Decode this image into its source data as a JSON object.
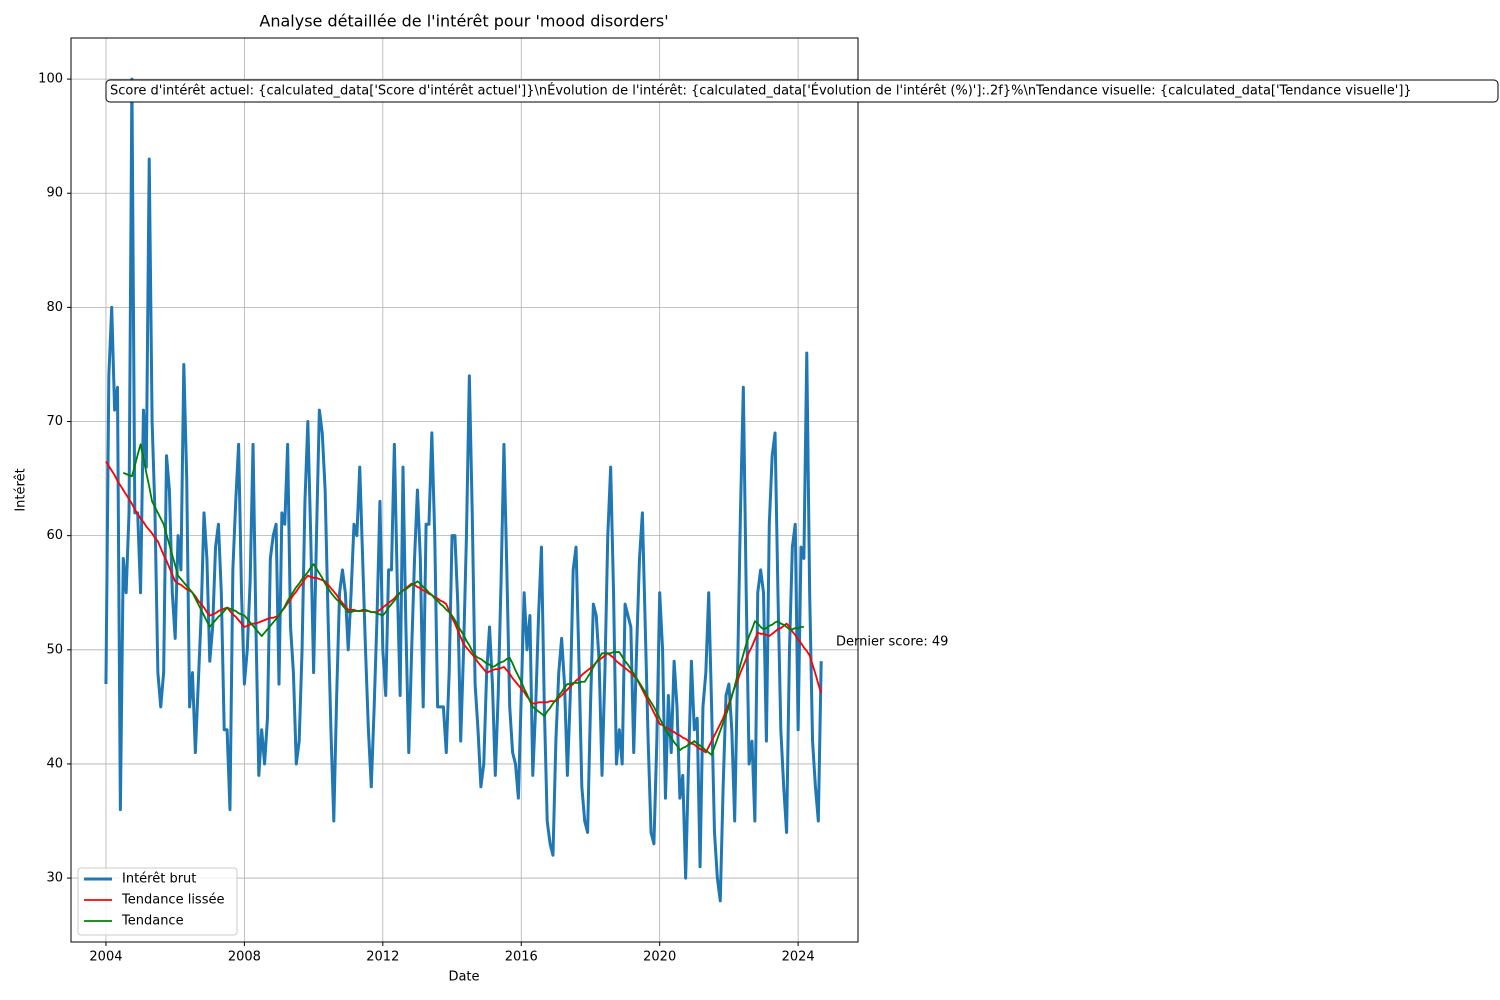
{
  "chart_data": {
    "type": "line",
    "title": "Analyse détaillée de l'intérêt pour 'mood disorders'",
    "xlabel": "Date",
    "ylabel": "Intérêt",
    "annotations": [
      "Score d'intérêt actuel: {calculated_data['Score d'intérêt actuel']}\\nÉvolution de l'intérêt: {calculated_data['Évolution de l'intérêt (%)']:.2f}%\\nTendance visuelle: {calculated_data['Tendance visuelle']}",
      "Dernier score: 49"
    ],
    "xlim": [
      2002.99,
      2025.73
    ],
    "xticks": [
      2004,
      2008,
      2012,
      2016,
      2020,
      2024
    ],
    "ylim": [
      24.4,
      103.6
    ],
    "yticks": [
      30,
      40,
      50,
      60,
      70,
      80,
      90,
      100
    ],
    "grid": true,
    "legend": "lower left",
    "x": [
      "2004-01",
      "2004-02",
      "2004-03",
      "2004-04",
      "2004-05",
      "2004-06",
      "2004-07",
      "2004-08",
      "2004-09",
      "2004-10",
      "2004-11",
      "2004-12",
      "2005-01",
      "2005-02",
      "2005-03",
      "2005-04",
      "2005-05",
      "2005-06",
      "2005-07",
      "2005-08",
      "2005-09",
      "2005-10",
      "2005-11",
      "2005-12",
      "2006-01",
      "2006-02",
      "2006-03",
      "2006-04",
      "2006-05",
      "2006-06",
      "2006-07",
      "2006-08",
      "2006-09",
      "2006-10",
      "2006-11",
      "2006-12",
      "2007-01",
      "2007-02",
      "2007-03",
      "2007-04",
      "2007-05",
      "2007-06",
      "2007-07",
      "2007-08",
      "2007-09",
      "2007-10",
      "2007-11",
      "2007-12",
      "2008-01",
      "2008-02",
      "2008-03",
      "2008-04",
      "2008-05",
      "2008-06",
      "2008-07",
      "2008-08",
      "2008-09",
      "2008-10",
      "2008-11",
      "2008-12",
      "2009-01",
      "2009-02",
      "2009-03",
      "2009-04",
      "2009-05",
      "2009-06",
      "2009-07",
      "2009-08",
      "2009-09",
      "2009-10",
      "2009-11",
      "2009-12",
      "2010-01",
      "2010-02",
      "2010-03",
      "2010-04",
      "2010-05",
      "2010-06",
      "2010-07",
      "2010-08",
      "2010-09",
      "2010-10",
      "2010-11",
      "2010-12",
      "2011-01",
      "2011-02",
      "2011-03",
      "2011-04",
      "2011-05",
      "2011-06",
      "2011-07",
      "2011-08",
      "2011-09",
      "2011-10",
      "2011-11",
      "2011-12",
      "2012-01",
      "2012-02",
      "2012-03",
      "2012-04",
      "2012-05",
      "2012-06",
      "2012-07",
      "2012-08",
      "2012-09",
      "2012-10",
      "2012-11",
      "2012-12",
      "2013-01",
      "2013-02",
      "2013-03",
      "2013-04",
      "2013-05",
      "2013-06",
      "2013-07",
      "2013-08",
      "2013-09",
      "2013-10",
      "2013-11",
      "2013-12",
      "2014-01",
      "2014-02",
      "2014-03",
      "2014-04",
      "2014-05",
      "2014-06",
      "2014-07",
      "2014-08",
      "2014-09",
      "2014-10",
      "2014-11",
      "2014-12",
      "2015-01",
      "2015-02",
      "2015-03",
      "2015-04",
      "2015-05",
      "2015-06",
      "2015-07",
      "2015-08",
      "2015-09",
      "2015-10",
      "2015-11",
      "2015-12",
      "2016-01",
      "2016-02",
      "2016-03",
      "2016-04",
      "2016-05",
      "2016-06",
      "2016-07",
      "2016-08",
      "2016-09",
      "2016-10",
      "2016-11",
      "2016-12",
      "2017-01",
      "2017-02",
      "2017-03",
      "2017-04",
      "2017-05",
      "2017-06",
      "2017-07",
      "2017-08",
      "2017-09",
      "2017-10",
      "2017-11",
      "2017-12",
      "2018-01",
      "2018-02",
      "2018-03",
      "2018-04",
      "2018-05",
      "2018-06",
      "2018-07",
      "2018-08",
      "2018-09",
      "2018-10",
      "2018-11",
      "2018-12",
      "2019-01",
      "2019-02",
      "2019-03",
      "2019-04",
      "2019-05",
      "2019-06",
      "2019-07",
      "2019-08",
      "2019-09",
      "2019-10",
      "2019-11",
      "2019-12",
      "2020-01",
      "2020-02",
      "2020-03",
      "2020-04",
      "2020-05",
      "2020-06",
      "2020-07",
      "2020-08",
      "2020-09",
      "2020-10",
      "2020-11",
      "2020-12",
      "2021-01",
      "2021-02",
      "2021-03",
      "2021-04",
      "2021-05",
      "2021-06",
      "2021-07",
      "2021-08",
      "2021-09",
      "2021-10",
      "2021-11",
      "2021-12",
      "2022-01",
      "2022-02",
      "2022-03",
      "2022-04",
      "2022-05",
      "2022-06",
      "2022-07",
      "2022-08",
      "2022-09",
      "2022-10",
      "2022-11",
      "2022-12",
      "2023-01",
      "2023-02",
      "2023-03",
      "2023-04",
      "2023-05",
      "2023-06",
      "2023-07",
      "2023-08",
      "2023-09",
      "2023-10",
      "2023-11",
      "2023-12",
      "2024-01",
      "2024-02",
      "2024-03",
      "2024-04",
      "2024-05",
      "2024-06",
      "2024-07",
      "2024-08",
      "2024-09"
    ],
    "series": [
      {
        "name": "Intérêt brut",
        "color": "#1f77b4",
        "width": 3,
        "values": [
          47,
          74,
          80,
          71,
          73,
          36,
          58,
          55,
          62,
          100,
          62,
          62,
          55,
          71,
          66,
          93,
          70,
          62,
          48,
          45,
          48,
          67,
          64,
          55,
          51,
          60,
          57,
          75,
          65,
          45,
          48,
          41,
          47,
          53,
          62,
          58,
          49,
          52,
          59,
          61,
          55,
          43,
          43,
          36,
          57,
          63,
          68,
          55,
          47,
          50,
          56,
          68,
          52,
          39,
          43,
          40,
          44,
          58,
          60,
          61,
          47,
          62,
          61,
          68,
          52,
          48,
          40,
          42,
          50,
          63,
          70,
          60,
          48,
          60,
          71,
          69,
          64,
          53,
          43,
          35,
          46,
          55,
          57,
          55,
          50,
          55,
          61,
          60,
          66,
          58,
          50,
          43,
          38,
          45,
          53,
          63,
          50,
          46,
          57,
          57,
          68,
          56,
          46,
          66,
          52,
          41,
          50,
          58,
          64,
          58,
          45,
          61,
          61,
          69,
          60,
          45,
          45,
          45,
          41,
          48,
          60,
          60,
          54,
          42,
          50,
          60,
          74,
          62,
          47,
          43,
          38,
          40,
          48,
          52,
          47,
          39,
          46,
          56,
          68,
          57,
          45,
          41,
          40,
          37,
          46,
          55,
          50,
          53,
          39,
          45,
          53,
          59,
          45,
          35,
          33,
          32,
          42,
          48,
          51,
          47,
          39,
          46,
          57,
          59,
          49,
          38,
          35,
          34,
          45,
          54,
          53,
          49,
          39,
          48,
          60,
          66,
          55,
          40,
          43,
          40,
          54,
          53,
          52,
          41,
          50,
          58,
          62,
          52,
          42,
          34,
          33,
          42,
          55,
          50,
          37,
          46,
          41,
          49,
          45,
          37,
          39,
          30,
          40,
          49,
          43,
          44,
          31,
          45,
          48,
          55,
          45,
          34,
          30,
          28,
          38,
          46,
          47,
          43,
          35,
          48,
          62,
          73,
          55,
          40,
          42,
          35,
          55,
          57,
          55,
          42,
          61,
          67,
          69,
          55,
          43,
          38,
          34,
          50,
          59,
          61,
          43,
          59,
          58,
          76,
          55,
          42,
          38,
          35,
          49
        ]
      },
      {
        "name": "Tendance lissée",
        "color": "#ff0000",
        "width": 1.8,
        "values": [
          66.5,
          66.1,
          65.7,
          65.3,
          64.8,
          64.4,
          64.0,
          63.6,
          63.2,
          62.8,
          62.3,
          61.9,
          61.5,
          61.2,
          60.8,
          60.5,
          60.2,
          59.8,
          59.5,
          58.9,
          58.3,
          57.8,
          57.2,
          56.6,
          56.0,
          55.8,
          55.7,
          55.5,
          55.3,
          55.2,
          55.0,
          54.7,
          54.3,
          54.0,
          53.7,
          53.3,
          53.0,
          53.1,
          53.2,
          53.4,
          53.5,
          53.6,
          53.7,
          53.4,
          53.1,
          52.9,
          52.6,
          52.3,
          52.0,
          52.1,
          52.2,
          52.3,
          52.3,
          52.4,
          52.5,
          52.6,
          52.7,
          52.8,
          52.8,
          52.9,
          53.0,
          53.4,
          53.7,
          54.1,
          54.4,
          54.8,
          55.1,
          55.5,
          55.8,
          56.2,
          56.5,
          56.4,
          56.3,
          56.3,
          56.2,
          56.1,
          56.0,
          55.7,
          55.4,
          55.1,
          54.8,
          54.4,
          54.1,
          53.8,
          53.5,
          53.5,
          53.5,
          53.4,
          53.4,
          53.4,
          53.4,
          53.4,
          53.3,
          53.3,
          53.3,
          53.5,
          53.7,
          53.9,
          54.1,
          54.3,
          54.5,
          54.8,
          55.0,
          55.2,
          55.4,
          55.6,
          55.8,
          55.7,
          55.5,
          55.4,
          55.2,
          55.1,
          54.9,
          54.8,
          54.6,
          54.5,
          54.3,
          54.2,
          54.0,
          53.4,
          52.8,
          52.3,
          51.7,
          51.1,
          50.5,
          50.2,
          49.9,
          49.6,
          49.3,
          48.9,
          48.6,
          48.3,
          48.0,
          48.1,
          48.2,
          48.3,
          48.3,
          48.4,
          48.5,
          48.2,
          47.9,
          47.5,
          47.2,
          46.9,
          46.6,
          46.3,
          45.9,
          45.6,
          45.3,
          45.3,
          45.4,
          45.4,
          45.4,
          45.4,
          45.5,
          45.5,
          45.5,
          45.8,
          46.0,
          46.3,
          46.5,
          46.8,
          47.0,
          47.3,
          47.5,
          47.8,
          48.0,
          48.2,
          48.4,
          48.6,
          48.9,
          49.1,
          49.3,
          49.5,
          49.7,
          49.5,
          49.3,
          49.0,
          48.8,
          48.6,
          48.4,
          48.2,
          48.0,
          47.7,
          47.5,
          47.0,
          46.5,
          46.0,
          45.5,
          45.0,
          44.5,
          44.0,
          43.5,
          43.4,
          43.2,
          43.1,
          42.9,
          42.8,
          42.6,
          42.5,
          42.3,
          42.2,
          42.0,
          41.8,
          41.7,
          41.5,
          41.3,
          41.2,
          41.0,
          41.5,
          42.0,
          42.5,
          43.0,
          43.5,
          44.0,
          44.7,
          45.3,
          46.0,
          46.7,
          47.3,
          48.0,
          48.6,
          49.2,
          49.8,
          50.3,
          50.9,
          51.5,
          51.4,
          51.4,
          51.3,
          51.2,
          51.4,
          51.6,
          51.8,
          51.9,
          52.1,
          52.3,
          52.0,
          51.6,
          51.3,
          50.9,
          50.6,
          50.2,
          49.9,
          49.5,
          48.7,
          47.9,
          47.0,
          46.2
        ]
      },
      {
        "name": "Tendance",
        "color": "#008000",
        "width": 1.8,
        "values": [
          null,
          null,
          null,
          null,
          null,
          null,
          65.5,
          65.4,
          65.3,
          65.2,
          66.1,
          67.1,
          68.0,
          66.8,
          65.5,
          64.3,
          63.0,
          62.5,
          62.0,
          61.5,
          61.0,
          60.1,
          59.2,
          58.3,
          57.4,
          56.5,
          56.2,
          55.9,
          55.6,
          55.3,
          55.0,
          54.5,
          54.0,
          53.5,
          53.0,
          52.5,
          52.0,
          52.3,
          52.6,
          52.9,
          53.1,
          53.4,
          53.7,
          53.6,
          53.5,
          53.4,
          53.2,
          53.1,
          53.0,
          52.7,
          52.4,
          52.1,
          51.8,
          51.5,
          51.2,
          51.5,
          51.8,
          52.1,
          52.4,
          52.7,
          53.0,
          53.4,
          53.8,
          54.3,
          54.7,
          55.1,
          55.5,
          55.8,
          56.2,
          56.5,
          56.8,
          57.2,
          57.5,
          57.1,
          56.7,
          56.3,
          55.8,
          55.4,
          55.0,
          54.7,
          54.4,
          54.2,
          53.9,
          53.6,
          53.3,
          53.3,
          53.4,
          53.4,
          53.4,
          53.5,
          53.5,
          53.4,
          53.3,
          53.3,
          53.2,
          53.1,
          53.0,
          53.3,
          53.7,
          54.0,
          54.3,
          54.7,
          55.0,
          55.2,
          55.3,
          55.5,
          55.7,
          55.8,
          56.0,
          55.8,
          55.5,
          55.3,
          55.0,
          54.8,
          54.5,
          54.3,
          54.0,
          53.8,
          53.5,
          53.3,
          53.0,
          52.6,
          52.1,
          51.7,
          51.3,
          50.8,
          50.4,
          49.9,
          49.5,
          49.3,
          49.2,
          49.0,
          48.8,
          48.7,
          48.5,
          48.6,
          48.8,
          48.9,
          49.0,
          49.2,
          49.3,
          48.8,
          48.2,
          47.7,
          47.2,
          46.6,
          46.1,
          45.5,
          45.0,
          44.8,
          44.6,
          44.4,
          44.2,
          44.6,
          44.9,
          45.3,
          45.6,
          46.0,
          46.3,
          46.7,
          47.0,
          47.0,
          47.1,
          47.1,
          47.1,
          47.2,
          47.2,
          47.6,
          48.0,
          48.5,
          48.9,
          49.3,
          49.7,
          49.7,
          49.7,
          49.7,
          49.8,
          49.8,
          49.8,
          49.4,
          49.0,
          48.7,
          48.3,
          47.9,
          47.5,
          47.1,
          46.7,
          46.3,
          45.8,
          45.4,
          45.0,
          44.5,
          44.0,
          43.5,
          43.0,
          42.6,
          42.3,
          41.9,
          41.6,
          41.2,
          41.4,
          41.5,
          41.7,
          41.8,
          42.0,
          41.8,
          41.6,
          41.4,
          41.2,
          41.0,
          40.8,
          41.5,
          42.2,
          42.9,
          43.6,
          44.3,
          45.0,
          45.9,
          46.8,
          47.8,
          48.7,
          49.6,
          50.5,
          51.2,
          51.8,
          52.5,
          52.3,
          52.0,
          51.8,
          51.9,
          52.1,
          52.2,
          52.4,
          52.5,
          52.3,
          52.2,
          52.0,
          51.8,
          51.8,
          51.9,
          51.9,
          52.0,
          52.0,
          null,
          null,
          null,
          null,
          null,
          null
        ]
      }
    ]
  }
}
